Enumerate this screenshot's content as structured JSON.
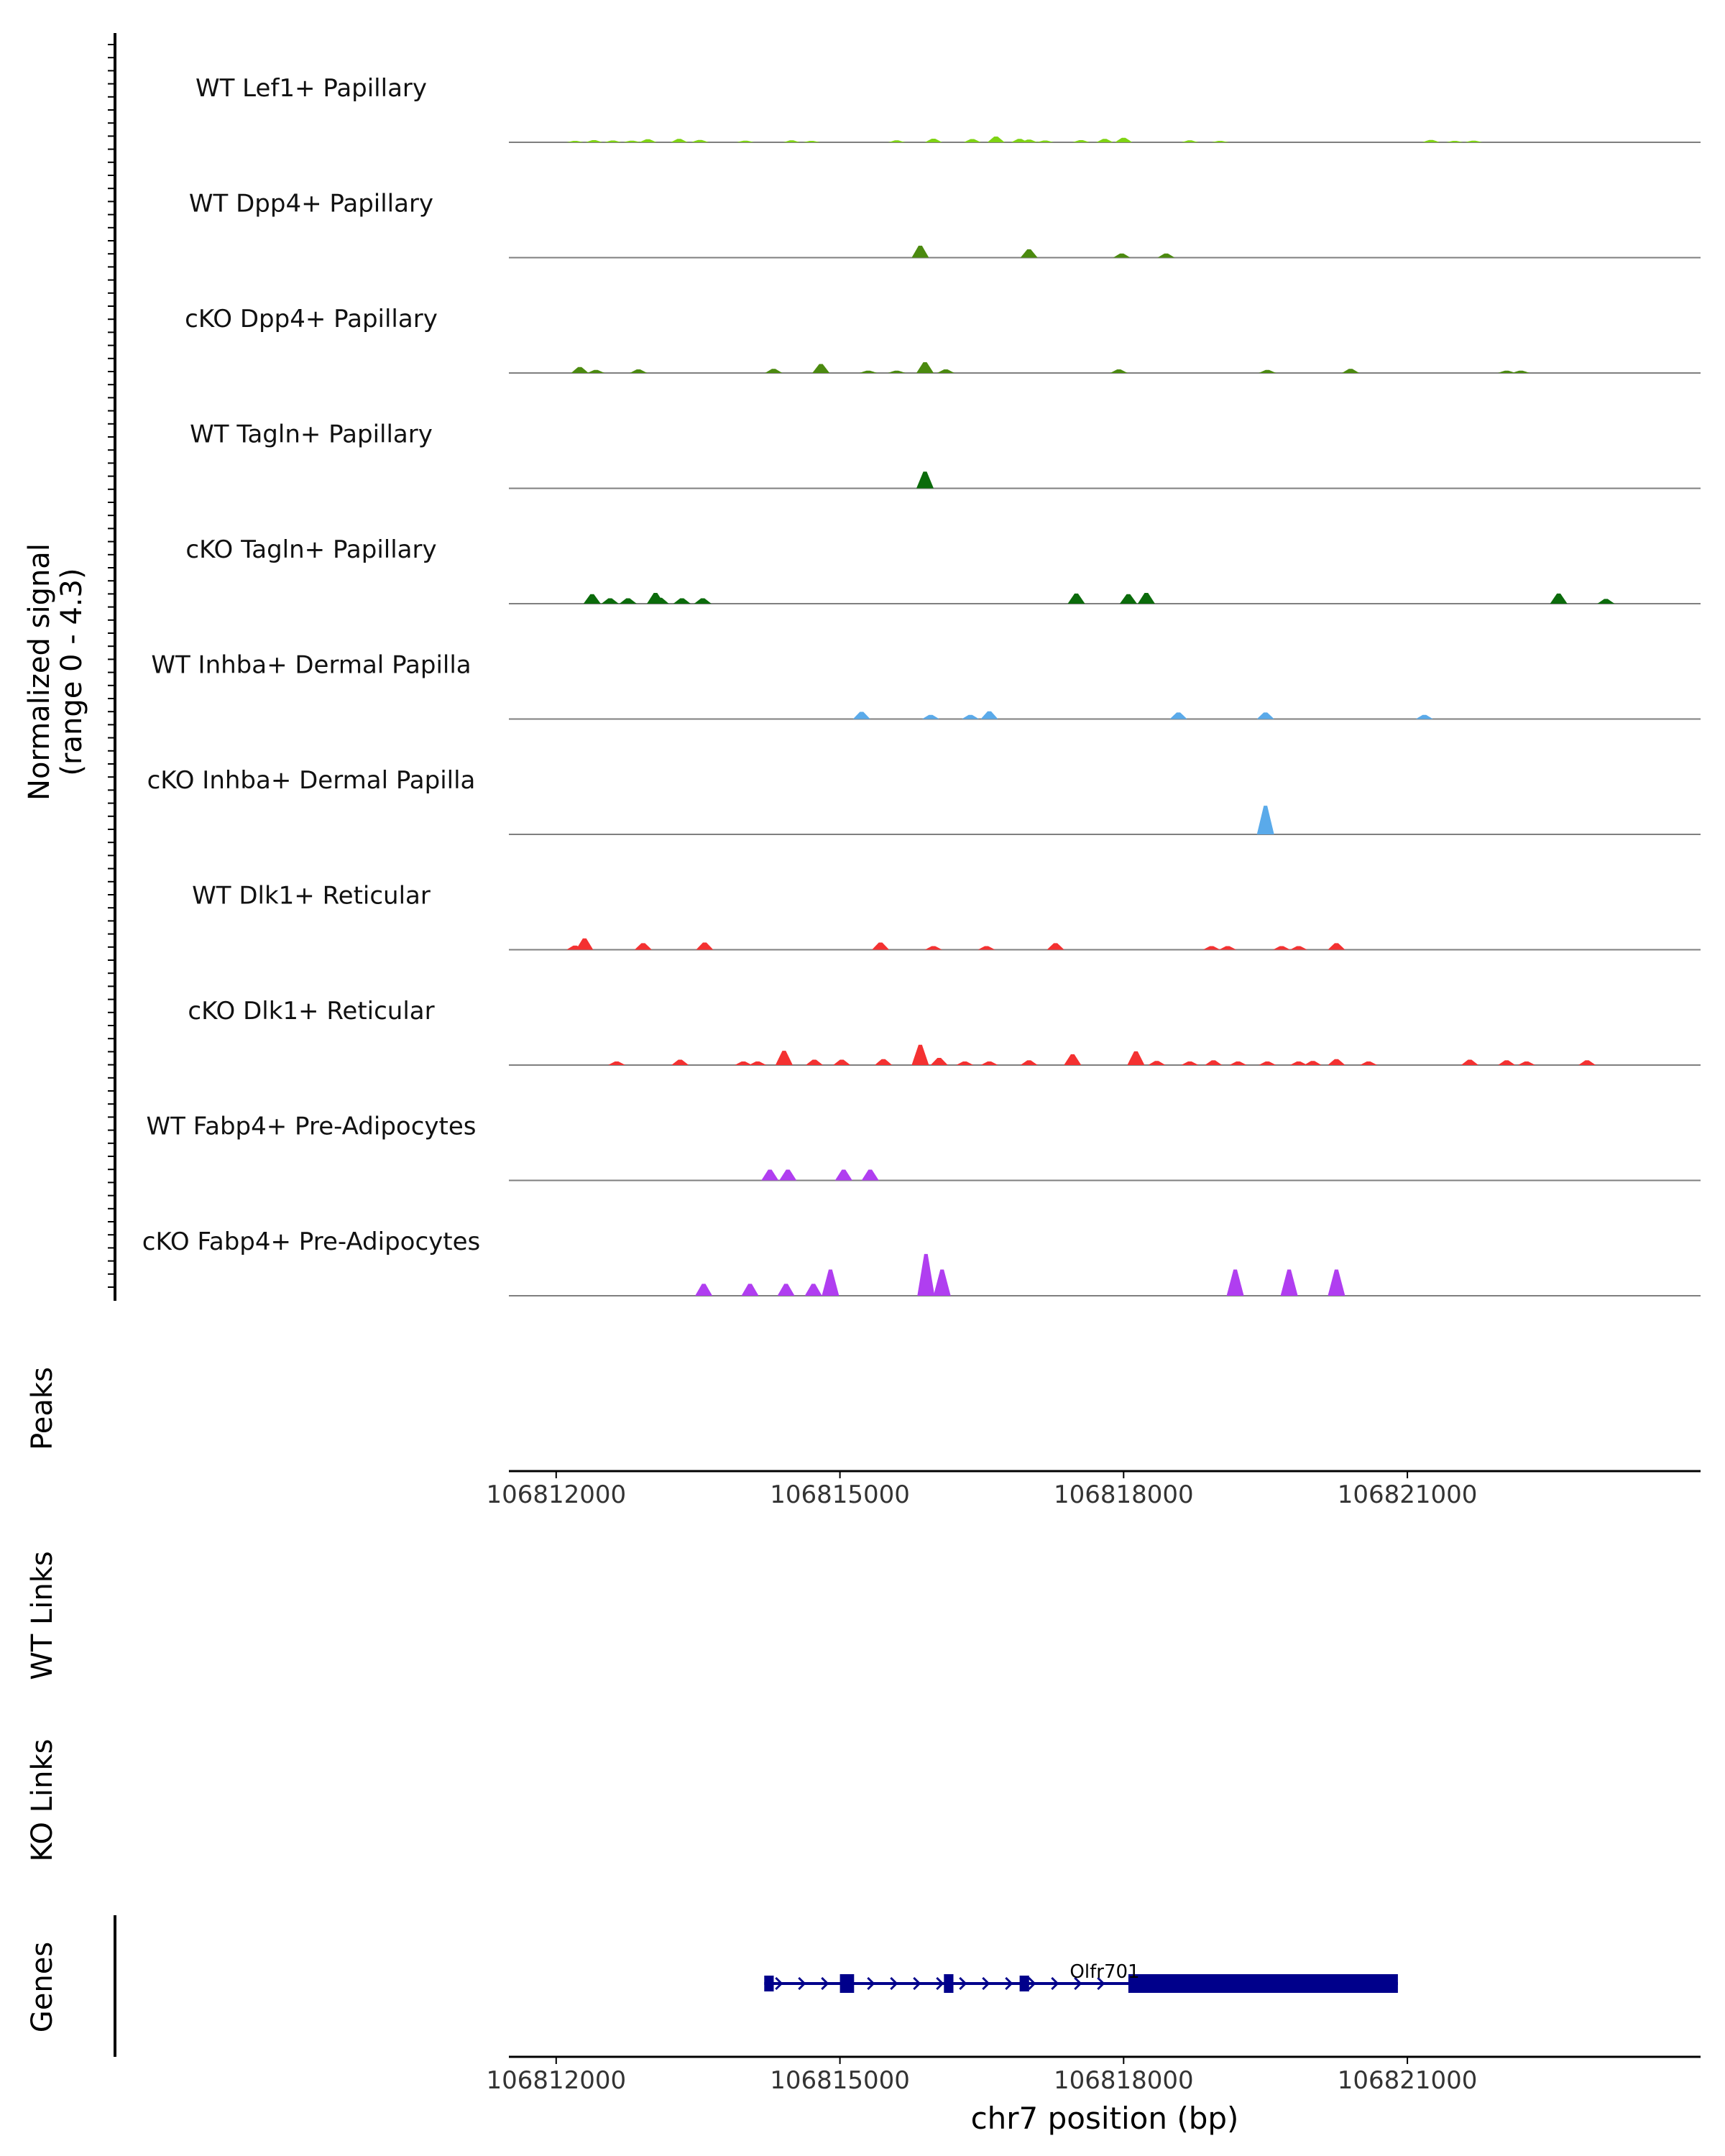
{
  "chart_data": {
    "type": "area",
    "title": "",
    "ylabel": "Normalized signal",
    "ylabel_range": "(range 0 - 4.3)",
    "signal_ylim": [
      0,
      4.3
    ],
    "chromosome": "chr7",
    "xlabel": "chr7 position (bp)",
    "xlim": [
      106811500,
      106824100
    ],
    "x_ticks": [
      106812000,
      106815000,
      106818000,
      106821000
    ],
    "x_tick_labels": [
      "106812000",
      "106815000",
      "106818000",
      "106821000"
    ],
    "colors": {
      "Lef1": "#7fd313",
      "Dpp4": "#4b8a0f",
      "Tagln": "#0b6b0b",
      "Inhba": "#5aaaea",
      "Dlk1": "#f43131",
      "Fabp4": "#b03ef0",
      "gene": "#00008b"
    },
    "series": [
      {
        "name": "WT Lef1+ Papillary",
        "color": "#7fd313",
        "peaks": [
          [
            106812200,
            0.12
          ],
          [
            106812400,
            0.18
          ],
          [
            106812600,
            0.15
          ],
          [
            106812800,
            0.14
          ],
          [
            106812970,
            0.25
          ],
          [
            106813300,
            0.28
          ],
          [
            106813520,
            0.2
          ],
          [
            106814000,
            0.14
          ],
          [
            106814490,
            0.16
          ],
          [
            106814700,
            0.12
          ],
          [
            106815600,
            0.16
          ],
          [
            106815990,
            0.3
          ],
          [
            106816400,
            0.27
          ],
          [
            106816650,
            0.48
          ],
          [
            106816900,
            0.28
          ],
          [
            106817000,
            0.22
          ],
          [
            106817170,
            0.15
          ],
          [
            106817550,
            0.18
          ],
          [
            106817800,
            0.28
          ],
          [
            106818000,
            0.38
          ],
          [
            106818700,
            0.16
          ],
          [
            106819020,
            0.12
          ],
          [
            106821250,
            0.2
          ],
          [
            106821500,
            0.12
          ],
          [
            106821700,
            0.14
          ]
        ]
      },
      {
        "name": "WT Dpp4+ Papillary",
        "color": "#4b8a0f",
        "peaks": [
          [
            106815850,
            1.0
          ],
          [
            106817000,
            0.7
          ],
          [
            106817980,
            0.35
          ],
          [
            106818450,
            0.35
          ]
        ]
      },
      {
        "name": "cKO Dpp4+ Papillary",
        "color": "#4b8a0f",
        "peaks": [
          [
            106812250,
            0.5
          ],
          [
            106812420,
            0.25
          ],
          [
            106812870,
            0.3
          ],
          [
            106814300,
            0.35
          ],
          [
            106814800,
            0.75
          ],
          [
            106815300,
            0.2
          ],
          [
            106815600,
            0.2
          ],
          [
            106815900,
            0.9
          ],
          [
            106816120,
            0.3
          ],
          [
            106817950,
            0.3
          ],
          [
            106819520,
            0.25
          ],
          [
            106820400,
            0.35
          ],
          [
            106822050,
            0.2
          ],
          [
            106822200,
            0.2
          ]
        ]
      },
      {
        "name": "WT Tagln+ Papillary",
        "color": "#0b6b0b",
        "peaks": [
          [
            106815900,
            1.4
          ]
        ]
      },
      {
        "name": "cKO Tagln+ Papillary",
        "color": "#0b6b0b",
        "peaks": [
          [
            106812380,
            0.8
          ],
          [
            106812570,
            0.45
          ],
          [
            106812760,
            0.45
          ],
          [
            106813050,
            0.9
          ],
          [
            106813100,
            0.5
          ],
          [
            106813330,
            0.45
          ],
          [
            106813550,
            0.45
          ],
          [
            106817500,
            0.85
          ],
          [
            106818050,
            0.8
          ],
          [
            106818240,
            0.9
          ],
          [
            106822600,
            0.85
          ],
          [
            106823100,
            0.4
          ]
        ]
      },
      {
        "name": "WT Inhba+ Dermal Papilla",
        "color": "#5aaaea",
        "peaks": [
          [
            106815230,
            0.6
          ],
          [
            106815960,
            0.35
          ],
          [
            106816380,
            0.35
          ],
          [
            106816580,
            0.65
          ],
          [
            106818580,
            0.55
          ],
          [
            106819500,
            0.55
          ],
          [
            106821180,
            0.35
          ]
        ]
      },
      {
        "name": "cKO Inhba+ Dermal Papilla",
        "color": "#5aaaea",
        "peaks": [
          [
            106819500,
            2.4
          ]
        ]
      },
      {
        "name": "WT Dlk1+ Reticular",
        "color": "#f43131",
        "peaks": [
          [
            106812200,
            0.35
          ],
          [
            106812300,
            0.95
          ],
          [
            106812920,
            0.55
          ],
          [
            106813570,
            0.6
          ],
          [
            106815430,
            0.6
          ],
          [
            106815990,
            0.3
          ],
          [
            106816550,
            0.3
          ],
          [
            106817280,
            0.55
          ],
          [
            106818930,
            0.3
          ],
          [
            106819100,
            0.3
          ],
          [
            106819670,
            0.3
          ],
          [
            106819850,
            0.3
          ],
          [
            106820250,
            0.55
          ]
        ]
      },
      {
        "name": "cKO Dlk1+ Reticular",
        "color": "#f43131",
        "peaks": [
          [
            106812640,
            0.3
          ],
          [
            106813310,
            0.45
          ],
          [
            106813980,
            0.3
          ],
          [
            106814130,
            0.3
          ],
          [
            106814410,
            1.2
          ],
          [
            106814730,
            0.45
          ],
          [
            106815020,
            0.45
          ],
          [
            106815460,
            0.5
          ],
          [
            106815850,
            1.7
          ],
          [
            106816050,
            0.6
          ],
          [
            106816320,
            0.3
          ],
          [
            106816580,
            0.3
          ],
          [
            106817000,
            0.4
          ],
          [
            106817460,
            0.9
          ],
          [
            106818130,
            1.15
          ],
          [
            106818350,
            0.35
          ],
          [
            106818700,
            0.3
          ],
          [
            106818950,
            0.4
          ],
          [
            106819210,
            0.3
          ],
          [
            106819520,
            0.3
          ],
          [
            106819850,
            0.3
          ],
          [
            106820000,
            0.35
          ],
          [
            106820250,
            0.5
          ],
          [
            106820590,
            0.3
          ],
          [
            106821660,
            0.45
          ],
          [
            106822050,
            0.4
          ],
          [
            106822260,
            0.3
          ],
          [
            106822900,
            0.4
          ]
        ]
      },
      {
        "name": "WT Fabp4+ Pre-Adipocytes",
        "color": "#b03ef0",
        "peaks": [
          [
            106814260,
            0.9
          ],
          [
            106814450,
            0.9
          ],
          [
            106815040,
            0.9
          ],
          [
            106815320,
            0.9
          ]
        ]
      },
      {
        "name": "cKO Fabp4+ Pre-Adipocytes",
        "color": "#b03ef0",
        "peaks": [
          [
            106813560,
            1.0
          ],
          [
            106814050,
            1.0
          ],
          [
            106814430,
            1.0
          ],
          [
            106814720,
            1.0
          ],
          [
            106814900,
            2.2
          ],
          [
            106815910,
            3.5
          ],
          [
            106816080,
            2.2
          ],
          [
            106819180,
            2.2
          ],
          [
            106819750,
            2.2
          ],
          [
            106820250,
            2.2
          ]
        ]
      }
    ],
    "peaks_track": {
      "label": "Peaks",
      "regions": []
    },
    "link_tracks": [
      {
        "label": "WT Links",
        "links": []
      },
      {
        "label": "KO Links",
        "links": []
      }
    ],
    "genes_track": {
      "label": "Genes",
      "gene": {
        "name": "Olfr701",
        "strand": "+",
        "start": 106814200,
        "end": 106820900,
        "exons": [
          [
            106814200,
            106814300
          ],
          [
            106815000,
            106815150
          ],
          [
            106816100,
            106816200
          ],
          [
            106816900,
            106817000
          ],
          [
            106818050,
            106820900
          ]
        ]
      }
    }
  }
}
